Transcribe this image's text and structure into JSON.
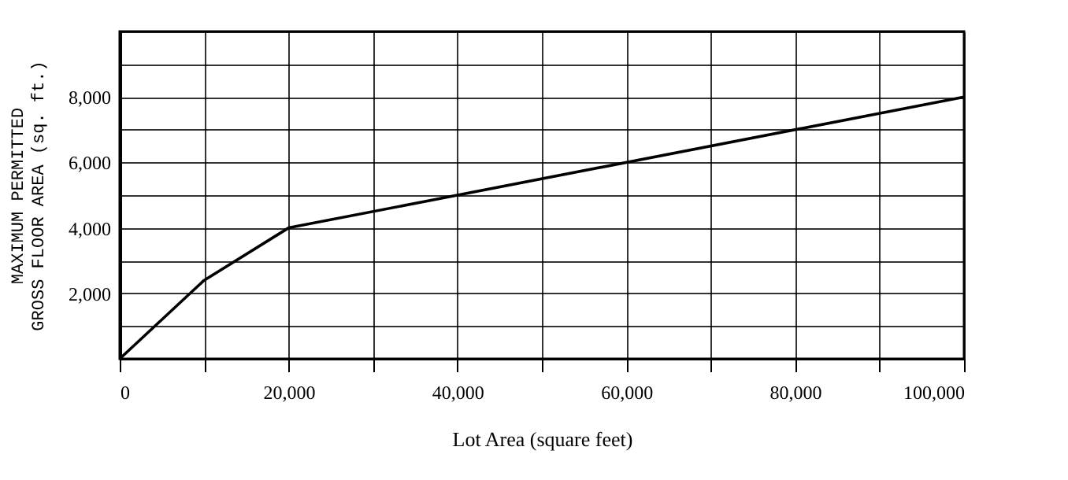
{
  "chart_data": {
    "type": "line",
    "xlabel": "Lot Area (square feet)",
    "ylabel": "MAXIMUM PERMITTED\nGROSS FLOOR AREA (sq. ft.)",
    "x": [
      0,
      10000,
      20000,
      100000
    ],
    "series": [
      {
        "color": "#000000",
        "values": [
          0,
          2400,
          4000,
          8000
        ]
      }
    ],
    "xlim": [
      0,
      100000
    ],
    "xticks": [
      0,
      {
        "value": 10000,
        "label": null
      },
      {
        "value": 20000,
        "label": "20,000"
      },
      {
        "value": 30000,
        "label": null
      },
      {
        "value": 40000,
        "label": "40,000"
      },
      {
        "value": 50000,
        "label": null
      },
      {
        "value": 60000,
        "label": "60,000"
      },
      {
        "value": 70000,
        "label": null
      },
      {
        "value": 80000,
        "label": "80,000"
      },
      {
        "value": 90000,
        "label": null
      },
      {
        "value": 100000,
        "label": "100,000"
      }
    ],
    "ylim": [
      0,
      10000
    ],
    "yticks": [
      {
        "value": 1000,
        "label": null
      },
      {
        "value": 2000,
        "label": "2,000"
      },
      {
        "value": 3000,
        "label": null
      },
      {
        "value": 4000,
        "label": "4,000"
      },
      {
        "value": 5000,
        "label": null
      },
      {
        "value": 6000,
        "label": "6,000"
      },
      {
        "value": 7000,
        "label": null
      },
      {
        "value": 8000,
        "label": "8,000"
      },
      {
        "value": 9000,
        "label": null
      },
      {
        "value": 10000,
        "label": null
      }
    ],
    "grid": true,
    "marker": "none",
    "line_style": "solid"
  }
}
